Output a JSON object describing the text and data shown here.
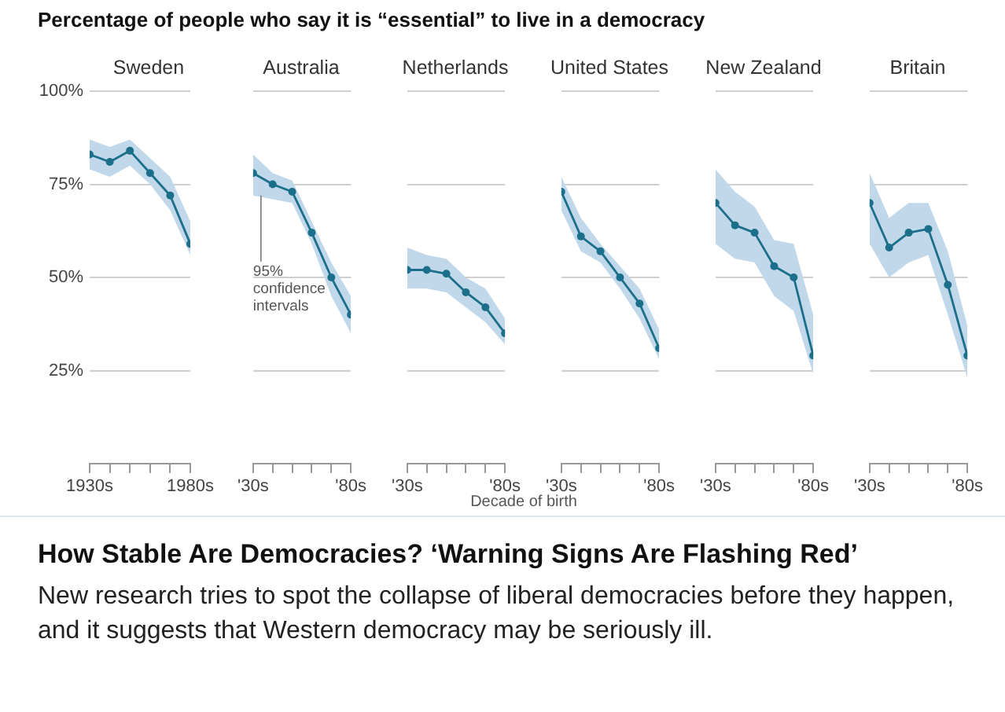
{
  "chart_data": [
    {
      "type": "line",
      "title": "Sweden",
      "annotations": [
        "Percentage of people who say it is “essential” to live in a democracy"
      ],
      "categories": [
        "1930s",
        null,
        null,
        null,
        null,
        "1980s"
      ],
      "ylim": [
        0,
        100
      ],
      "yticks": [
        {
          "value": 25,
          "label": "25%"
        },
        {
          "value": 50,
          "label": "50%"
        },
        {
          "value": 75,
          "label": "75%"
        },
        {
          "value": 100,
          "label": "100%"
        }
      ],
      "grid": "y",
      "marker": "circle",
      "series": [
        {
          "color": "#1b6f8a",
          "values": [
            83,
            81,
            84,
            78,
            72,
            59
          ],
          "lower": [
            79,
            77,
            80,
            75,
            68,
            56
          ],
          "upper": [
            87,
            85,
            87,
            82,
            77,
            65
          ]
        }
      ]
    },
    {
      "type": "line",
      "title": "Australia",
      "annotations": [
        {
          "text": "95% confidence intervals",
          "x": "'30s",
          "y": 72
        }
      ],
      "categories": [
        "'30s",
        null,
        null,
        null,
        null,
        "'80s"
      ],
      "ylim": [
        0,
        100
      ],
      "yticks": [
        25,
        50,
        75,
        100
      ],
      "grid": "y",
      "marker": "circle",
      "tick_labels": "x",
      "series": [
        {
          "color": "#1b6f8a",
          "values": [
            78,
            75,
            73,
            62,
            50,
            40
          ],
          "lower": [
            72,
            71,
            70,
            59,
            45,
            35
          ],
          "upper": [
            83,
            78,
            76,
            65,
            54,
            45
          ]
        }
      ]
    },
    {
      "type": "line",
      "title": "Netherlands",
      "xlabel": "Decade of birth",
      "categories": [
        "'30s",
        null,
        null,
        null,
        null,
        "'80s"
      ],
      "ylim": [
        0,
        100
      ],
      "yticks": [
        25,
        50,
        75,
        100
      ],
      "grid": "y",
      "marker": "circle",
      "tick_labels": "x",
      "series": [
        {
          "color": "#1b6f8a",
          "values": [
            52,
            52,
            51,
            46,
            42,
            35
          ],
          "lower": [
            47,
            47,
            46,
            42,
            38,
            32
          ],
          "upper": [
            58,
            56,
            55,
            50,
            47,
            39
          ]
        }
      ]
    },
    {
      "type": "line",
      "title": "United States",
      "categories": [
        "'30s",
        null,
        null,
        null,
        null,
        "'80s"
      ],
      "ylim": [
        0,
        100
      ],
      "yticks": [
        25,
        50,
        75,
        100
      ],
      "grid": "y",
      "marker": "circle",
      "tick_labels": "x",
      "series": [
        {
          "color": "#1b6f8a",
          "values": [
            73,
            61,
            57,
            50,
            43,
            31
          ],
          "lower": [
            68,
            57,
            54,
            47,
            39,
            28
          ],
          "upper": [
            77,
            66,
            59,
            53,
            47,
            36
          ]
        }
      ]
    },
    {
      "type": "line",
      "title": "New Zealand",
      "categories": [
        "'30s",
        null,
        null,
        null,
        null,
        "'80s"
      ],
      "ylim": [
        0,
        100
      ],
      "yticks": [
        25,
        50,
        75,
        100
      ],
      "grid": "y",
      "marker": "circle",
      "tick_labels": "x",
      "series": [
        {
          "color": "#1b6f8a",
          "values": [
            70,
            64,
            62,
            53,
            50,
            29
          ],
          "lower": [
            59,
            55,
            54,
            45,
            41,
            24
          ],
          "upper": [
            79,
            73,
            69,
            60,
            59,
            40
          ]
        }
      ]
    },
    {
      "type": "line",
      "title": "Britain",
      "categories": [
        "'30s",
        null,
        null,
        null,
        null,
        "'80s"
      ],
      "ylim": [
        0,
        100
      ],
      "yticks": [
        25,
        50,
        75,
        100
      ],
      "grid": "y",
      "marker": "circle",
      "tick_labels": "x",
      "series": [
        {
          "color": "#1b6f8a",
          "values": [
            70,
            58,
            62,
            63,
            48,
            29
          ],
          "lower": [
            59,
            50,
            54,
            56,
            40,
            23
          ],
          "upper": [
            78,
            66,
            70,
            70,
            57,
            37
          ]
        }
      ]
    },
    {
      "type": "other",
      "title": "How Stable Are Democracies? ‘Warning Signs Are Flashing Red’",
      "annotations": [
        "New research tries to spot the collapse of liberal democracies before they happen, and it suggests that Western democracy may be seriously ill."
      ]
    }
  ]
}
